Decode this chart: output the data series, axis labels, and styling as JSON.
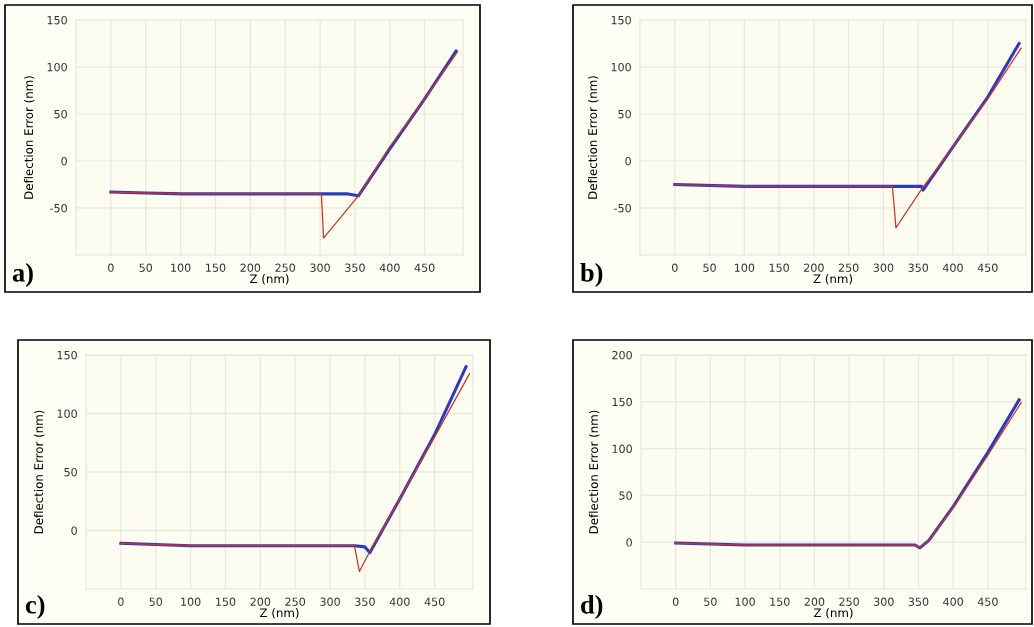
{
  "chart_data": [
    {
      "type": "line",
      "xlabel": "Z (nm)",
      "ylabel": "Deflection Error (nm)",
      "xlim": [
        -50,
        505
      ],
      "ylim": [
        -100,
        150
      ],
      "xticks": [
        0,
        50,
        100,
        150,
        200,
        250,
        300,
        350,
        400,
        450
      ],
      "yticks": [
        -50,
        0,
        50,
        100,
        150
      ],
      "grid": true,
      "annotations": [
        "a)"
      ],
      "series": [
        {
          "color": "#2b3bbf",
          "x": [
            0,
            50,
            105,
            300,
            340,
            355,
            400,
            450,
            495
          ],
          "values": [
            -33,
            -34,
            -35,
            -35,
            -35,
            -37,
            13,
            66,
            117
          ]
        },
        {
          "color": "#cc3322",
          "x": [
            0,
            50,
            105,
            300,
            302,
            305,
            355,
            400,
            450,
            497
          ],
          "values": [
            -33,
            -34,
            -35,
            -35,
            -36,
            -82,
            -37,
            15,
            66,
            116
          ]
        }
      ]
    },
    {
      "type": "line",
      "xlabel": "Z (nm)",
      "ylabel": "Deflection Error (nm)",
      "xlim": [
        -50,
        505
      ],
      "ylim": [
        -100,
        150
      ],
      "xticks": [
        0,
        50,
        100,
        150,
        200,
        250,
        300,
        350,
        400,
        450
      ],
      "yticks": [
        -50,
        0,
        50,
        100,
        150
      ],
      "grid": true,
      "annotations": [
        "b)"
      ],
      "series": [
        {
          "color": "#2b3bbf",
          "x": [
            0,
            100,
            313,
            340,
            355,
            357,
            400,
            450,
            495
          ],
          "values": [
            -25,
            -27,
            -27,
            -27,
            -27,
            -31,
            15,
            68,
            125
          ]
        },
        {
          "color": "#cc3322",
          "x": [
            0,
            100,
            313,
            318,
            355,
            400,
            450,
            498
          ],
          "values": [
            -25,
            -27,
            -27,
            -71,
            -30,
            15,
            66,
            120
          ]
        }
      ]
    },
    {
      "type": "line",
      "xlabel": "Z (nm)",
      "ylabel": "Deflection Error (nm)",
      "xlim": [
        -50,
        505
      ],
      "ylim": [
        -50,
        150
      ],
      "xticks": [
        0,
        50,
        100,
        150,
        200,
        250,
        300,
        350,
        400,
        450
      ],
      "yticks": [
        0,
        50,
        100,
        150
      ],
      "grid": true,
      "annotations": [
        "c)"
      ],
      "series": [
        {
          "color": "#2b3bbf",
          "x": [
            0,
            100,
            335,
            350,
            357,
            400,
            450,
            495
          ],
          "values": [
            -11,
            -13,
            -13,
            -14,
            -19,
            27,
            82,
            140
          ]
        },
        {
          "color": "#cc3322",
          "x": [
            0,
            100,
            335,
            342,
            357,
            400,
            450,
            500
          ],
          "values": [
            -11,
            -13,
            -13,
            -35,
            -18,
            27,
            80,
            134
          ]
        }
      ]
    },
    {
      "type": "line",
      "xlabel": "Z (nm)",
      "ylabel": "Deflection Error (nm)",
      "xlim": [
        -50,
        505
      ],
      "ylim": [
        -50,
        200
      ],
      "xticks": [
        0,
        50,
        100,
        150,
        200,
        250,
        300,
        350,
        400,
        450
      ],
      "yticks": [
        0,
        50,
        100,
        150,
        200
      ],
      "grid": true,
      "annotations": [
        "d)"
      ],
      "series": [
        {
          "color": "#2b3bbf",
          "x": [
            0,
            100,
            345,
            352,
            365,
            400,
            450,
            495
          ],
          "values": [
            -1,
            -3,
            -3,
            -6,
            2,
            38,
            96,
            152
          ]
        },
        {
          "color": "#cc3322",
          "x": [
            0,
            100,
            345,
            352,
            365,
            400,
            450,
            498
          ],
          "values": [
            -1,
            -3,
            -3,
            -6,
            2,
            37,
            93,
            149
          ]
        }
      ]
    }
  ]
}
